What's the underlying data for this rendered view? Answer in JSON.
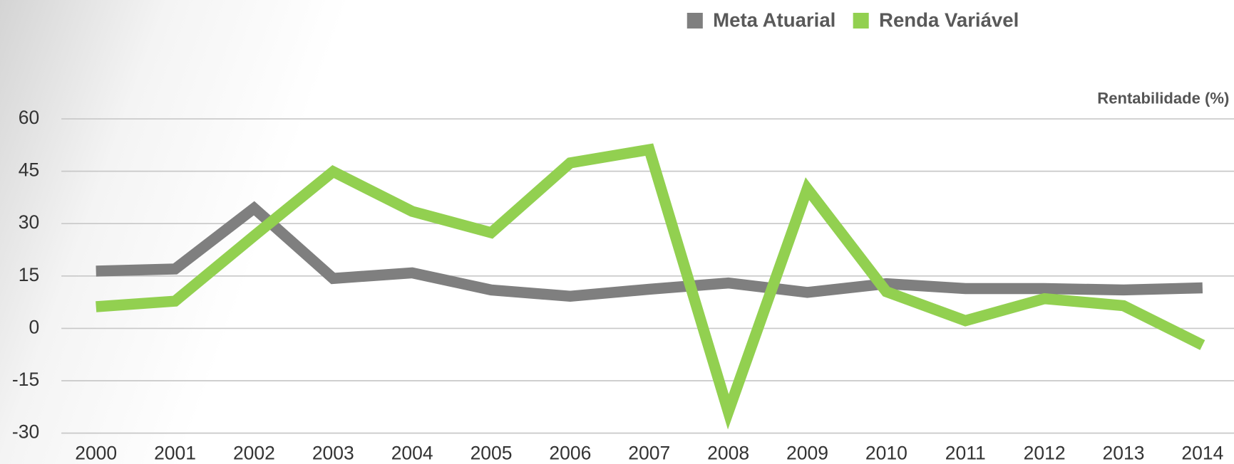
{
  "chart_data": {
    "type": "line",
    "y_label": "Rentabilidade (%)",
    "categories": [
      "2000",
      "2001",
      "2002",
      "2003",
      "2004",
      "2005",
      "2006",
      "2007",
      "2008",
      "2009",
      "2010",
      "2011",
      "2012",
      "2013",
      "2014"
    ],
    "series": [
      {
        "name": "Meta Atuarial",
        "color": "#7f7f7f",
        "values": [
          16.4,
          17,
          34.4,
          14.3,
          15.9,
          11,
          9.2,
          11.2,
          13,
          10.3,
          12.8,
          11.4,
          11.4,
          11,
          11.6
        ]
      },
      {
        "name": "Renda Variável",
        "color": "#92d050",
        "values": [
          6.2,
          7.8,
          26.5,
          44.9,
          33.5,
          27.4,
          47.4,
          51.2,
          -23.9,
          40,
          10.5,
          2.2,
          8.5,
          6.5,
          -4.8
        ]
      }
    ],
    "ylim": [
      -30,
      60
    ],
    "yticks": [
      -30,
      -15,
      0,
      15,
      30,
      45,
      60
    ],
    "grid": true,
    "legend": "top"
  }
}
